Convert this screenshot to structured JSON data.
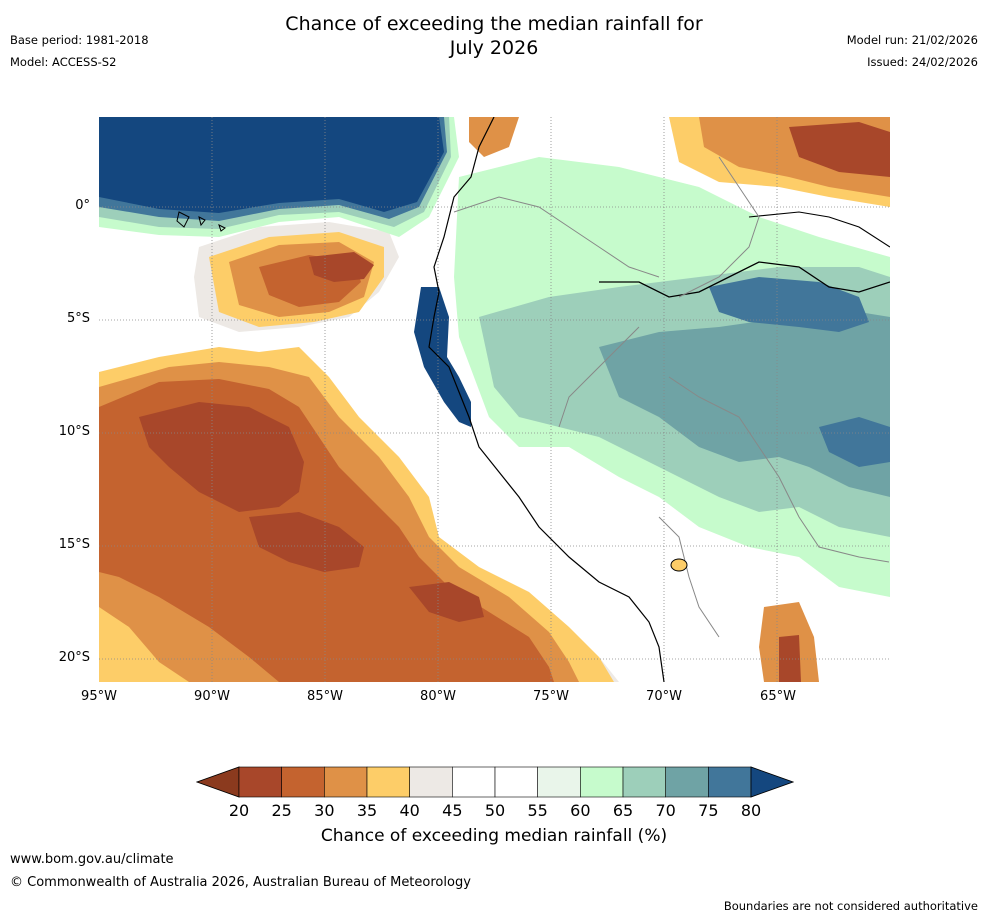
{
  "header": {
    "title_line1": "Chance of exceeding the median rainfall for",
    "title_line2": "July 2026",
    "base_period": "Base period: 1981-2018",
    "model": "Model: ACCESS-S2",
    "model_run": "Model run: 21/02/2026",
    "issued": "Issued: 24/02/2026"
  },
  "map": {
    "lat_labels": [
      "0°",
      "5°S",
      "10°S",
      "15°S",
      "20°S"
    ],
    "lon_labels": [
      "95°W",
      "90°W",
      "85°W",
      "80°W",
      "75°W",
      "70°W",
      "65°W"
    ]
  },
  "colorbar": {
    "title": "Chance of exceeding median rainfall (%)",
    "tick_labels": [
      "20",
      "25",
      "30",
      "35",
      "40",
      "45",
      "50",
      "55",
      "60",
      "65",
      "70",
      "75",
      "80"
    ],
    "below_color": "#8b3a1e",
    "above_color": "#14477f",
    "colors": [
      "#a8472a",
      "#c4632f",
      "#df9147",
      "#fdcd68",
      "#ede9e5",
      "#ffffff",
      "#ffffff",
      "#e9f5ea",
      "#c6fbcc",
      "#9dcfba",
      "#6fa3a5",
      "#41769a"
    ]
  },
  "footer": {
    "url": "www.bom.gov.au/climate",
    "copyright": "© Commonwealth of Australia 2026, Australian Bureau of Meteorology",
    "disclaimer": "Boundaries are not considered authoritative"
  }
}
